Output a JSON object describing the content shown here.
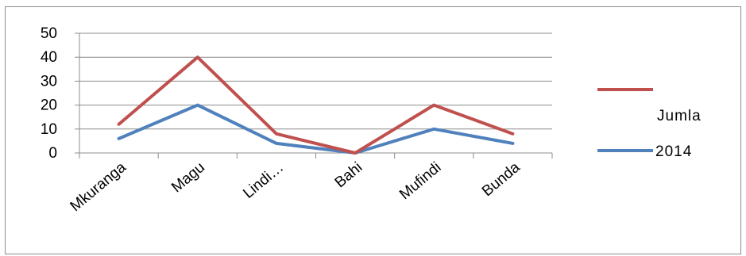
{
  "chart_data": {
    "type": "line",
    "categories": [
      "Mkuranga",
      "Magu",
      "Lindi…",
      "Bahi",
      "Mufindi",
      "Bunda"
    ],
    "series": [
      {
        "name": "Jumla",
        "values": [
          12,
          40,
          8,
          0,
          20,
          8
        ],
        "color": "#c0504d"
      },
      {
        "name": "2014",
        "values": [
          6,
          20,
          4,
          0,
          10,
          4
        ],
        "color": "#4f81bd"
      }
    ],
    "ylim": [
      0,
      50
    ],
    "yticks": [
      0,
      10,
      20,
      30,
      40,
      50
    ],
    "grid": true,
    "legend_position": "right",
    "title": "",
    "xlabel": "",
    "ylabel": ""
  }
}
